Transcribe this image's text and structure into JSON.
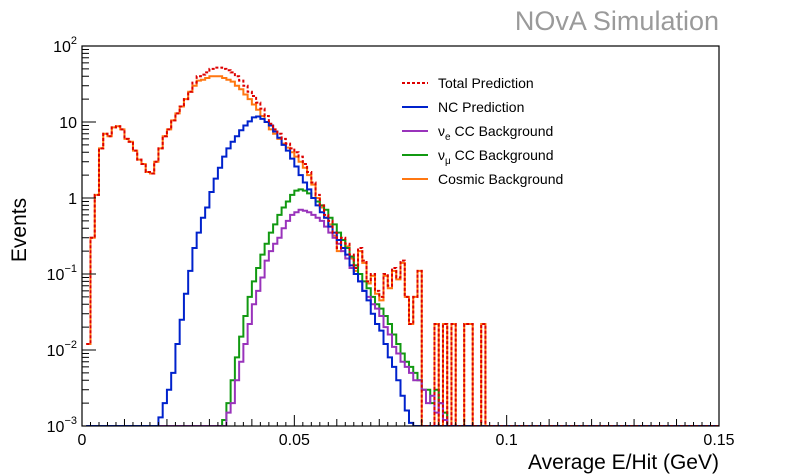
{
  "watermark": "NOvA Simulation",
  "chart_data": {
    "type": "line",
    "step": true,
    "xlabel": "Average E/Hit (GeV)",
    "ylabel": "Events",
    "xlim": [
      0,
      0.15
    ],
    "ylim": [
      0.001,
      100
    ],
    "yscale": "log",
    "x_ticks": [
      {
        "value": 0,
        "label": "0"
      },
      {
        "value": 0.05,
        "label": "0.05"
      },
      {
        "value": 0.1,
        "label": "0.1"
      },
      {
        "value": 0.15,
        "label": "0.15"
      }
    ],
    "y_ticks": [
      {
        "value": 0.001,
        "base": "10",
        "exp": "−3"
      },
      {
        "value": 0.01,
        "base": "10",
        "exp": "−2"
      },
      {
        "value": 0.1,
        "base": "10",
        "exp": "−1"
      },
      {
        "value": 1,
        "base": "1",
        "exp": ""
      },
      {
        "value": 10,
        "base": "10",
        "exp": ""
      },
      {
        "value": 100,
        "base": "10",
        "exp": "2"
      }
    ],
    "legend_position": "top-right",
    "bin_start": 0.001,
    "bin_width": 0.001,
    "series": [
      {
        "name": "Total Prediction",
        "name_main": "Total Prediction",
        "name_sub": "",
        "name_rest": "",
        "color": "#dd0000",
        "dashed": true,
        "values": [
          0.012,
          0.3,
          1.1,
          4.5,
          7,
          6.5,
          8.5,
          8.8,
          8,
          6,
          5.5,
          4.2,
          3.2,
          2.8,
          2.2,
          2.1,
          3,
          4.5,
          6.5,
          8,
          10.5,
          13,
          16,
          20,
          25,
          33,
          40,
          42,
          45,
          50,
          52,
          52,
          50,
          48,
          45,
          40,
          35,
          30,
          25,
          22,
          18,
          15,
          12,
          9.5,
          8,
          7,
          6,
          5.2,
          4.5,
          4,
          3.5,
          2.8,
          2.2,
          1.6,
          1.1,
          0.8,
          0.6,
          0.5,
          0.35,
          0.22,
          0.3,
          0.25,
          0.18,
          0.12,
          0.22,
          0.15,
          0.08,
          0.1,
          0.06,
          0.05,
          0.1,
          0.07,
          0.12,
          0.09,
          0.15,
          0.05,
          0.022,
          0.05,
          0.11,
          0.001,
          0.001,
          0.001,
          0.022,
          0.001,
          0.022,
          0.001,
          0.022,
          0.001,
          0.001,
          0.022,
          0.022,
          0.001,
          0.001,
          0.022,
          0.001,
          0.001,
          0.001,
          0.001,
          0.001,
          0.001,
          0.001,
          0.001,
          0.001,
          0.001,
          0.001,
          0.001,
          0.001,
          0.001,
          0.001,
          0.001,
          0.001,
          0.001,
          0.001,
          0.001,
          0.001,
          0.001,
          0.001,
          0.001,
          0.001,
          0.001,
          0.001,
          0.001,
          0.001,
          0.001,
          0.001,
          0.001,
          0.001,
          0.001,
          0.001,
          0.001,
          0.001,
          0.001,
          0.001,
          0.001,
          0.001,
          0.001,
          0.001,
          0.001,
          0.001,
          0.001,
          0.001,
          0.001,
          0.001,
          0.001,
          0.001,
          0.001,
          0.001,
          0.001,
          0.001,
          0.001
        ]
      },
      {
        "name": "NC Prediction",
        "name_main": "NC Prediction",
        "name_sub": "",
        "name_rest": "",
        "color": "#0022cc",
        "dashed": false,
        "values": [
          0.001,
          0.001,
          0.001,
          0.001,
          0.001,
          0.001,
          0.001,
          0.001,
          0.001,
          0.001,
          0.001,
          0.001,
          0.001,
          0.001,
          0.001,
          0.001,
          0.001,
          0.0013,
          0.002,
          0.003,
          0.005,
          0.012,
          0.025,
          0.055,
          0.11,
          0.22,
          0.35,
          0.55,
          0.75,
          1.2,
          1.8,
          2.5,
          3.5,
          4.5,
          5.5,
          6.5,
          7.8,
          9,
          10.2,
          11.5,
          11.8,
          11,
          10,
          9,
          7.5,
          6.2,
          5,
          4.2,
          3.3,
          2.6,
          2,
          1.6,
          1.3,
          1,
          0.8,
          0.65,
          0.55,
          0.42,
          0.35,
          0.28,
          0.22,
          0.18,
          0.13,
          0.1,
          0.08,
          0.06,
          0.045,
          0.03,
          0.022,
          0.018,
          0.012,
          0.008,
          0.006,
          0.004,
          0.0025,
          0.0016,
          0.0011,
          0.001,
          0.001,
          0.001,
          0.001,
          0.001,
          0.001,
          0.001,
          0.001,
          0.001,
          0.001,
          0.001,
          0.001,
          0.001,
          0.001,
          0.001,
          0.001,
          0.001,
          0.001,
          0.001,
          0.001,
          0.001,
          0.001,
          0.001,
          0.001,
          0.001,
          0.001,
          0.001,
          0.001,
          0.001,
          0.001,
          0.001,
          0.001,
          0.001,
          0.001,
          0.001,
          0.001,
          0.001,
          0.001,
          0.001,
          0.001,
          0.001,
          0.001,
          0.001,
          0.001,
          0.001,
          0.001,
          0.001,
          0.001,
          0.001,
          0.001,
          0.001,
          0.001,
          0.001,
          0.001,
          0.001,
          0.001,
          0.001,
          0.001,
          0.001,
          0.001,
          0.001,
          0.001,
          0.001,
          0.001,
          0.001,
          0.001,
          0.001,
          0.001,
          0.001,
          0.001,
          0.001,
          0.001,
          0.001,
          0.001,
          0.001
        ]
      },
      {
        "name": "νe CC Background",
        "name_main": "ν",
        "name_sub": "e",
        "name_rest": " CC Background",
        "color": "#9933bb",
        "dashed": false,
        "values": [
          0.001,
          0.001,
          0.001,
          0.001,
          0.001,
          0.001,
          0.001,
          0.001,
          0.001,
          0.001,
          0.001,
          0.001,
          0.001,
          0.001,
          0.001,
          0.001,
          0.001,
          0.001,
          0.001,
          0.001,
          0.001,
          0.001,
          0.001,
          0.001,
          0.001,
          0.001,
          0.001,
          0.001,
          0.001,
          0.001,
          0.001,
          0.001,
          0.001,
          0.0015,
          0.002,
          0.004,
          0.007,
          0.012,
          0.022,
          0.04,
          0.06,
          0.09,
          0.15,
          0.2,
          0.25,
          0.3,
          0.4,
          0.5,
          0.6,
          0.65,
          0.7,
          0.68,
          0.65,
          0.6,
          0.55,
          0.5,
          0.42,
          0.35,
          0.3,
          0.25,
          0.2,
          0.16,
          0.12,
          0.1,
          0.08,
          0.06,
          0.05,
          0.04,
          0.035,
          0.028,
          0.02,
          0.016,
          0.011,
          0.009,
          0.007,
          0.006,
          0.005,
          0.004,
          0.004,
          0.003,
          0.002,
          0.0025,
          0.0015,
          0.002,
          0.0012,
          0.001,
          0.001,
          0.001,
          0.001,
          0.001,
          0.001,
          0.001,
          0.001,
          0.001,
          0.001,
          0.001,
          0.001,
          0.001,
          0.001,
          0.001,
          0.001,
          0.001,
          0.001,
          0.001,
          0.001,
          0.001,
          0.001,
          0.001,
          0.001,
          0.001,
          0.001,
          0.001,
          0.001,
          0.001,
          0.001,
          0.001,
          0.001,
          0.001,
          0.001,
          0.001,
          0.001,
          0.001,
          0.001,
          0.001,
          0.001,
          0.001,
          0.001,
          0.001,
          0.001,
          0.001,
          0.001,
          0.001,
          0.001,
          0.001,
          0.001,
          0.001,
          0.001,
          0.001,
          0.001,
          0.001,
          0.001,
          0.001,
          0.001,
          0.001,
          0.001,
          0.001,
          0.001,
          0.001,
          0.001,
          0.001
        ]
      },
      {
        "name": "νμ CC Background",
        "name_main": "ν",
        "name_sub": "μ",
        "name_rest": " CC Background",
        "color": "#119911",
        "dashed": false,
        "values": [
          0.001,
          0.001,
          0.001,
          0.001,
          0.001,
          0.001,
          0.001,
          0.001,
          0.001,
          0.001,
          0.001,
          0.001,
          0.001,
          0.001,
          0.001,
          0.001,
          0.001,
          0.001,
          0.001,
          0.001,
          0.001,
          0.001,
          0.001,
          0.001,
          0.001,
          0.001,
          0.001,
          0.001,
          0.001,
          0.001,
          0.001,
          0.001,
          0.0012,
          0.002,
          0.004,
          0.008,
          0.015,
          0.028,
          0.05,
          0.08,
          0.12,
          0.18,
          0.25,
          0.35,
          0.45,
          0.6,
          0.75,
          0.9,
          1.1,
          1.25,
          1.3,
          1.25,
          1.15,
          1.0,
          0.9,
          0.8,
          0.7,
          0.55,
          0.45,
          0.35,
          0.28,
          0.22,
          0.17,
          0.13,
          0.1,
          0.08,
          0.065,
          0.05,
          0.04,
          0.035,
          0.028,
          0.022,
          0.016,
          0.012,
          0.009,
          0.007,
          0.006,
          0.005,
          0.004,
          0.003,
          0.003,
          0.002,
          0.003,
          0.002,
          0.0015,
          0.001,
          0.001,
          0.001,
          0.001,
          0.001,
          0.001,
          0.001,
          0.001,
          0.001,
          0.001,
          0.001,
          0.001,
          0.001,
          0.001,
          0.001,
          0.001,
          0.001,
          0.001,
          0.001,
          0.001,
          0.001,
          0.001,
          0.001,
          0.001,
          0.001,
          0.001,
          0.001,
          0.001,
          0.001,
          0.001,
          0.001,
          0.001,
          0.001,
          0.001,
          0.001,
          0.001,
          0.001,
          0.001,
          0.001,
          0.001,
          0.001,
          0.001,
          0.001,
          0.001,
          0.001,
          0.001,
          0.001,
          0.001,
          0.001,
          0.001,
          0.001,
          0.001,
          0.001,
          0.001,
          0.001,
          0.001,
          0.001,
          0.001,
          0.001,
          0.001,
          0.001,
          0.001,
          0.001,
          0.001,
          0.001
        ]
      },
      {
        "name": "Cosmic Background",
        "name_main": "Cosmic Background",
        "name_sub": "",
        "name_rest": "",
        "color": "#ff7711",
        "dashed": false,
        "values": [
          0.012,
          0.3,
          1.1,
          4.5,
          7,
          6.5,
          8.5,
          8.8,
          8,
          6,
          5.5,
          4.2,
          3.2,
          2.8,
          2.2,
          2.1,
          3,
          4.5,
          6.5,
          8,
          10.5,
          13,
          16,
          20,
          25,
          30,
          35,
          36,
          38,
          40,
          40,
          40,
          38,
          36,
          34,
          30,
          27,
          23,
          20,
          17,
          14.5,
          12,
          10,
          8,
          7,
          6,
          5.2,
          4.6,
          4,
          3.5,
          3,
          2.5,
          2,
          1.5,
          1,
          0.75,
          0.55,
          0.45,
          0.32,
          0.2,
          0.28,
          0.23,
          0.16,
          0.11,
          0.2,
          0.14,
          0.075,
          0.095,
          0.055,
          0.045,
          0.095,
          0.065,
          0.11,
          0.085,
          0.14,
          0.05,
          0.022,
          0.05,
          0.11,
          0.001,
          0.001,
          0.001,
          0.022,
          0.001,
          0.022,
          0.001,
          0.022,
          0.001,
          0.001,
          0.022,
          0.022,
          0.001,
          0.001,
          0.022,
          0.001,
          0.001,
          0.001,
          0.001,
          0.001,
          0.001,
          0.001,
          0.001,
          0.001,
          0.001,
          0.001,
          0.001,
          0.001,
          0.001,
          0.001,
          0.001,
          0.001,
          0.001,
          0.001,
          0.001,
          0.001,
          0.001,
          0.001,
          0.001,
          0.001,
          0.001,
          0.001,
          0.001,
          0.001,
          0.001,
          0.001,
          0.001,
          0.001,
          0.001,
          0.001,
          0.001,
          0.001,
          0.001,
          0.001,
          0.001,
          0.001,
          0.001,
          0.001,
          0.001,
          0.001,
          0.001,
          0.001,
          0.001,
          0.001,
          0.001,
          0.001,
          0.001,
          0.001,
          0.001,
          0.001,
          0.001
        ]
      }
    ]
  }
}
